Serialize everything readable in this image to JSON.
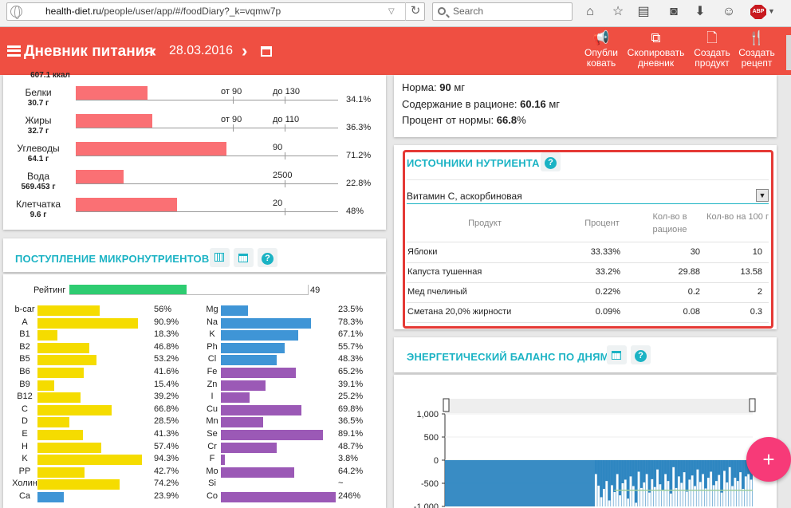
{
  "browser": {
    "url_domain": "health-diet.ru",
    "url_path": "/people/user/app/#/foodDiary?_k=vqmw7p",
    "search_placeholder": "Search"
  },
  "appbar": {
    "title": "Дневник питания",
    "date": "28.03.2016",
    "prev_icon": "chevron-left-icon",
    "next_icon": "chevron-right-icon",
    "actions": [
      {
        "label": "Опубли ковать",
        "icon": "megaphone-icon"
      },
      {
        "label": "Скопировать дневник",
        "icon": "copy-icon"
      },
      {
        "label": "Создать продукт",
        "icon": "document-icon"
      },
      {
        "label": "Создать рецепт",
        "icon": "fork-knife-icon"
      }
    ]
  },
  "macros": {
    "top_cut_label": "607.1 ккал",
    "rows": [
      {
        "name": "Белки",
        "amount": "30.7 г",
        "limits": [
          "от 90",
          "до 130"
        ],
        "percent": "34.1%",
        "fill": 0.341
      },
      {
        "name": "Жиры",
        "amount": "32.7 г",
        "limits": [
          "от 90",
          "до 110"
        ],
        "percent": "36.3%",
        "fill": 0.363
      },
      {
        "name": "Углеводы",
        "amount": "64.1 г",
        "limits": [
          "90"
        ],
        "percent": "71.2%",
        "fill": 0.712
      },
      {
        "name": "Вода",
        "amount": "569.453 г",
        "limits": [
          "2500"
        ],
        "percent": "22.8%",
        "fill": 0.228
      },
      {
        "name": "Клетчатка",
        "amount": "9.6 г",
        "limits": [
          "20"
        ],
        "percent": "48%",
        "fill": 0.48
      }
    ]
  },
  "micro": {
    "title": "ПОСТУПЛЕНИЕ МИКРОНУТРИЕНТОВ",
    "rating_label": "Рейтинг",
    "rating_value": "49",
    "rating_fill": 0.49,
    "colors": {
      "vitamin": "#f5dc00",
      "mineral_blue": "#3f95d6",
      "mineral_purple": "#9b59b6",
      "rating": "#2ecc71"
    },
    "vitamins": [
      {
        "name": "b-car",
        "percent": "56%",
        "fill": 0.56
      },
      {
        "name": "A",
        "percent": "90.9%",
        "fill": 0.909
      },
      {
        "name": "B1",
        "percent": "18.3%",
        "fill": 0.183
      },
      {
        "name": "B2",
        "percent": "46.8%",
        "fill": 0.468
      },
      {
        "name": "B5",
        "percent": "53.2%",
        "fill": 0.532
      },
      {
        "name": "B6",
        "percent": "41.6%",
        "fill": 0.416
      },
      {
        "name": "B9",
        "percent": "15.4%",
        "fill": 0.154
      },
      {
        "name": "B12",
        "percent": "39.2%",
        "fill": 0.392
      },
      {
        "name": "C",
        "percent": "66.8%",
        "fill": 0.668
      },
      {
        "name": "D",
        "percent": "28.5%",
        "fill": 0.285
      },
      {
        "name": "E",
        "percent": "41.3%",
        "fill": 0.413
      },
      {
        "name": "H",
        "percent": "57.4%",
        "fill": 0.574
      },
      {
        "name": "K",
        "percent": "94.3%",
        "fill": 0.943
      },
      {
        "name": "PP",
        "percent": "42.7%",
        "fill": 0.427
      },
      {
        "name": "Холин",
        "percent": "74.2%",
        "fill": 0.742
      },
      {
        "name": "Ca",
        "percent": "23.9%",
        "fill": 0.239,
        "color": "blue"
      }
    ],
    "minerals": [
      {
        "name": "Mg",
        "percent": "23.5%",
        "fill": 0.235,
        "color": "blue"
      },
      {
        "name": "Na",
        "percent": "78.3%",
        "fill": 0.783,
        "color": "blue"
      },
      {
        "name": "K",
        "percent": "67.1%",
        "fill": 0.671,
        "color": "blue"
      },
      {
        "name": "Ph",
        "percent": "55.7%",
        "fill": 0.557,
        "color": "blue"
      },
      {
        "name": "Cl",
        "percent": "48.3%",
        "fill": 0.483,
        "color": "blue"
      },
      {
        "name": "Fe",
        "percent": "65.2%",
        "fill": 0.652,
        "color": "purple"
      },
      {
        "name": "Zn",
        "percent": "39.1%",
        "fill": 0.391,
        "color": "purple"
      },
      {
        "name": "I",
        "percent": "25.2%",
        "fill": 0.252,
        "color": "purple"
      },
      {
        "name": "Cu",
        "percent": "69.8%",
        "fill": 0.698,
        "color": "purple"
      },
      {
        "name": "Mn",
        "percent": "36.5%",
        "fill": 0.365,
        "color": "purple"
      },
      {
        "name": "Se",
        "percent": "89.1%",
        "fill": 0.891,
        "color": "purple"
      },
      {
        "name": "Cr",
        "percent": "48.7%",
        "fill": 0.487,
        "color": "purple"
      },
      {
        "name": "F",
        "percent": "3.8%",
        "fill": 0.038,
        "color": "purple"
      },
      {
        "name": "Mo",
        "percent": "64.2%",
        "fill": 0.642,
        "color": "purple"
      },
      {
        "name": "Si",
        "percent": "~",
        "fill": 0,
        "color": "purple"
      },
      {
        "name": "Co",
        "percent": "246%",
        "fill": 1.0,
        "color": "purple"
      }
    ]
  },
  "norm": {
    "norm_label": "Норма:",
    "norm_value": "90",
    "norm_unit": "мг",
    "content_label": "Содержание в рационе:",
    "content_value": "60.16",
    "content_unit": "мг",
    "percent_label": "Процент от нормы:",
    "percent_value": "66.8",
    "percent_unit": "%"
  },
  "sources": {
    "title": "ИСТОЧНИКИ НУТРИЕНТА",
    "selected": "Витамин С, аскорбиновая",
    "headers": [
      "Продукт",
      "Процент",
      "Кол-во в рационе",
      "Кол-во на 100 г"
    ],
    "rows": [
      [
        "Яблоки",
        "33.33%",
        "30",
        "10"
      ],
      [
        "Капуста тушенная",
        "33.2%",
        "29.88",
        "13.58"
      ],
      [
        "Мед пчелиный",
        "0.22%",
        "0.2",
        "2"
      ],
      [
        "Сметана 20,0% жирности",
        "0.09%",
        "0.08",
        "0.3"
      ]
    ]
  },
  "energy": {
    "title": "ЭНЕРГЕТИЧЕСКИЙ БАЛАНС ПО ДНЯМ",
    "fab_label": "+"
  },
  "chart_data": {
    "type": "bar",
    "ylim": [
      -1000,
      1000
    ],
    "yticks": [
      "1,000",
      "500",
      "0",
      "-500",
      "-1,000"
    ],
    "bar_color": "#2e86c1",
    "values": [
      0,
      0,
      0,
      0,
      0,
      0,
      0,
      0,
      0,
      0,
      0,
      0,
      0,
      0,
      0,
      0,
      0,
      0,
      0,
      0,
      0,
      0,
      0,
      0,
      0,
      0,
      0,
      0,
      0,
      0,
      0,
      0,
      0,
      0,
      0,
      0,
      0,
      0,
      0,
      0,
      0,
      0,
      0,
      0,
      0,
      0,
      0,
      0,
      0,
      0,
      0,
      0,
      0,
      0,
      0,
      0,
      -300,
      -550,
      -800,
      -620,
      -450,
      -870,
      -540,
      -690,
      -300,
      -760,
      -500,
      -420,
      -830,
      -350,
      -560,
      -920,
      -250,
      -600,
      -480,
      -300,
      -700,
      -410,
      -580,
      -200,
      -520,
      -640,
      -300,
      -450,
      -720,
      -150,
      -600,
      -350,
      -490,
      -260,
      -680,
      -420,
      -330,
      -560,
      -200,
      -470,
      -300,
      -610,
      -380,
      -250,
      -540,
      -450,
      -320,
      -700,
      -230,
      -480,
      -150,
      -560,
      -380,
      -450,
      -260,
      -620,
      -350,
      -300,
      -420
    ],
    "overlay_line": [
      [
        -650,
        0.55
      ],
      [
        -650,
        1.0
      ]
    ]
  }
}
